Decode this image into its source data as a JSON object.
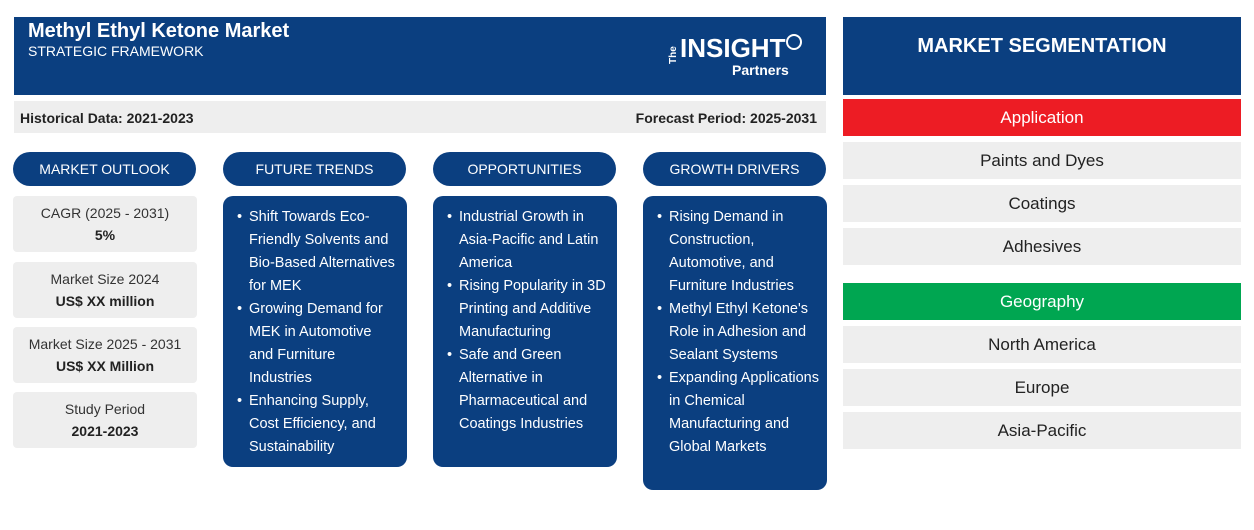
{
  "header": {
    "title": "Methyl Ethyl Ketone Market",
    "subtitle": "STRATEGIC FRAMEWORK",
    "logo": {
      "the": "The",
      "insight": "INSIGHT",
      "partners": "Partners"
    }
  },
  "databar": {
    "historical": "Historical Data: 2021-2023",
    "forecast": "Forecast Period: 2025-2031"
  },
  "columns": {
    "outlook": "MARKET OUTLOOK",
    "trends": "FUTURE TRENDS",
    "opportunities": "OPPORTUNITIES",
    "drivers": "GROWTH DRIVERS"
  },
  "outlook": [
    {
      "label": "CAGR (2025 - 2031)",
      "value": "5%"
    },
    {
      "label": "Market Size 2024",
      "value": "US$ XX million"
    },
    {
      "label": "Market Size 2025 - 2031",
      "value": "US$ XX Million"
    },
    {
      "label": "Study Period",
      "value": "2021-2023"
    }
  ],
  "trends": [
    "Shift Towards Eco-Friendly Solvents and Bio-Based Alternatives for MEK",
    "Growing Demand for MEK in Automotive and Furniture Industries",
    "Enhancing Supply, Cost Efficiency, and Sustainability"
  ],
  "opportunities": [
    "Industrial Growth in Asia-Pacific and Latin America",
    "Rising Popularity in 3D Printing and Additive Manufacturing",
    "Safe and Green Alternative in Pharmaceutical and Coatings Industries"
  ],
  "drivers": [
    "Rising Demand in Construction, Automotive, and Furniture Industries",
    "Methyl Ethyl Ketone's Role in Adhesion and Sealant Systems",
    "Expanding Applications in Chemical Manufacturing and Global Markets"
  ],
  "segmentation": {
    "title": "MARKET SEGMENTATION",
    "application": {
      "label": "Application",
      "color": "#ed1c24",
      "items": [
        "Paints and Dyes",
        "Coatings",
        "Adhesives"
      ]
    },
    "geography": {
      "label": "Geography",
      "color": "#00a651",
      "items": [
        "North America",
        "Europe",
        "Asia-Pacific"
      ]
    }
  }
}
